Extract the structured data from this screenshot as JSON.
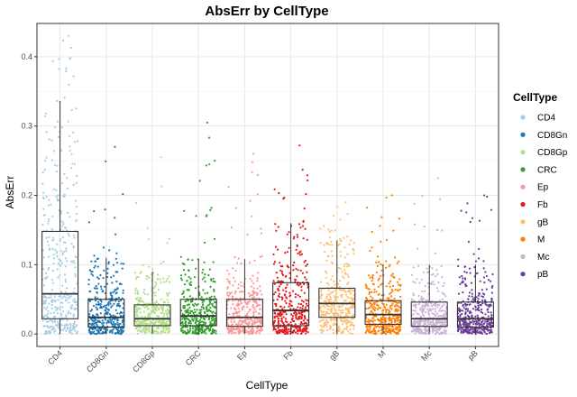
{
  "chart_data": {
    "type": "box-jitter",
    "title": "AbsErr by CellType",
    "xlabel": "CellType",
    "ylabel": "AbsErr",
    "ylim": [
      -0.018,
      0.448
    ],
    "yticks": [
      0.0,
      0.1,
      0.2,
      0.3,
      0.4
    ],
    "ytick_labels": [
      "0.0",
      "0.1",
      "0.2",
      "0.3",
      "0.4"
    ],
    "grid": true,
    "legend": {
      "title": "CellType",
      "position": "right"
    },
    "categories": [
      "CD4",
      "CD8Gn",
      "CD8Gp",
      "CRC",
      "Ep",
      "Fb",
      "gB",
      "M",
      "Mc",
      "pB"
    ],
    "colors": [
      "#A6CEE3",
      "#1F78B4",
      "#B2DF8A",
      "#33A02C",
      "#FB9A99",
      "#E31A1C",
      "#FDBF6F",
      "#FF7F00",
      "#CAB2D6",
      "#6A3D9A"
    ],
    "boxes": [
      {
        "name": "CD4",
        "lower_whisker": 0.0,
        "q1": 0.022,
        "median": 0.058,
        "q3": 0.148,
        "upper_whisker": 0.336,
        "max": 0.43
      },
      {
        "name": "CD8Gn",
        "lower_whisker": 0.0,
        "q1": 0.01,
        "median": 0.024,
        "q3": 0.05,
        "upper_whisker": 0.11,
        "max": 0.27
      },
      {
        "name": "CD8Gp",
        "lower_whisker": 0.0,
        "q1": 0.012,
        "median": 0.022,
        "q3": 0.042,
        "upper_whisker": 0.09,
        "max": 0.255
      },
      {
        "name": "CRC",
        "lower_whisker": 0.0,
        "q1": 0.012,
        "median": 0.026,
        "q3": 0.05,
        "upper_whisker": 0.108,
        "max": 0.305
      },
      {
        "name": "Ep",
        "lower_whisker": 0.0,
        "q1": 0.011,
        "median": 0.024,
        "q3": 0.05,
        "upper_whisker": 0.108,
        "max": 0.26
      },
      {
        "name": "Fb",
        "lower_whisker": 0.0,
        "q1": 0.012,
        "median": 0.034,
        "q3": 0.074,
        "upper_whisker": 0.16,
        "max": 0.272
      },
      {
        "name": "gB",
        "lower_whisker": 0.0,
        "q1": 0.024,
        "median": 0.044,
        "q3": 0.066,
        "upper_whisker": 0.135,
        "max": 0.19
      },
      {
        "name": "M",
        "lower_whisker": 0.0,
        "q1": 0.014,
        "median": 0.028,
        "q3": 0.048,
        "upper_whisker": 0.1,
        "max": 0.2
      },
      {
        "name": "Mc",
        "lower_whisker": 0.0,
        "q1": 0.011,
        "median": 0.022,
        "q3": 0.046,
        "upper_whisker": 0.1,
        "max": 0.225
      },
      {
        "name": "pB",
        "lower_whisker": 0.0,
        "q1": 0.01,
        "median": 0.022,
        "q3": 0.046,
        "upper_whisker": 0.1,
        "max": 0.2
      }
    ]
  }
}
